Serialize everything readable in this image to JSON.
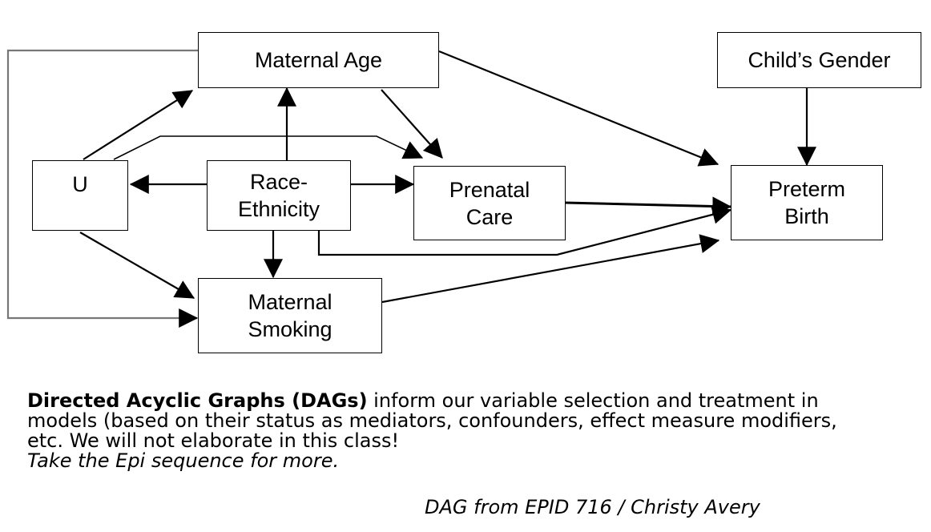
{
  "nodes": {
    "maternal_age": "Maternal Age",
    "childs_gender": "Child’s Gender",
    "u": "U",
    "race_ethnicity": "Race-\nEthnicity",
    "prenatal_care": "Prenatal\nCare",
    "preterm_birth": "Preterm\nBirth",
    "maternal_smoking": "Maternal\nSmoking"
  },
  "edges": [
    {
      "from": "U",
      "to": "Maternal Age"
    },
    {
      "from": "U",
      "to": "Prenatal Care"
    },
    {
      "from": "U",
      "to": "Maternal Smoking"
    },
    {
      "from": "Race-Ethnicity",
      "to": "U"
    },
    {
      "from": "Race-Ethnicity",
      "to": "Maternal Age"
    },
    {
      "from": "Race-Ethnicity",
      "to": "Prenatal Care"
    },
    {
      "from": "Race-Ethnicity",
      "to": "Maternal Smoking"
    },
    {
      "from": "Race-Ethnicity",
      "to": "Preterm Birth"
    },
    {
      "from": "Maternal Age",
      "to": "Prenatal Care"
    },
    {
      "from": "Maternal Age",
      "to": "Preterm Birth"
    },
    {
      "from": "Maternal Age",
      "to": "Maternal Smoking"
    },
    {
      "from": "Child’s Gender",
      "to": "Preterm Birth"
    },
    {
      "from": "Prenatal Care",
      "to": "Preterm Birth"
    },
    {
      "from": "Maternal Smoking",
      "to": "Preterm Birth"
    }
  ],
  "caption": {
    "bold": "Directed Acyclic Graphs (DAGs)",
    "body": " inform our variable selection and treatment in models (based on their status as mediators, confounders, effect measure modifiers, etc. We will not elaborate in this class!",
    "italic": "Take the Epi sequence for more."
  },
  "credit": "DAG from EPID 716 / Christy Avery"
}
